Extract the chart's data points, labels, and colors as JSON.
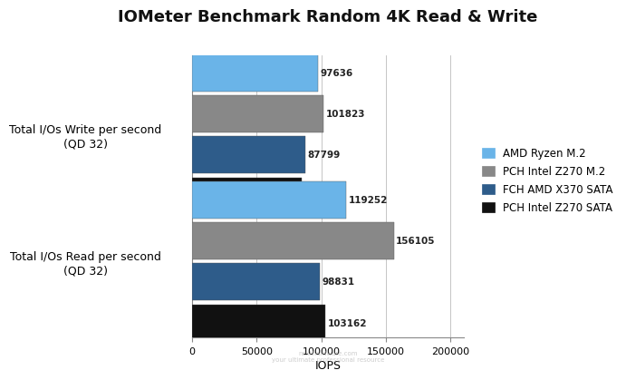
{
  "title": "IOMeter Benchmark Random 4K Read & Write",
  "groups": [
    {
      "label": "Total I/Os Write per second\n(QD 32)",
      "values": [
        97636,
        101823,
        87799,
        84744
      ]
    },
    {
      "label": "Total I/Os Read per second\n(QD 32)",
      "values": [
        119252,
        156105,
        98831,
        103162
      ]
    }
  ],
  "series_labels": [
    "AMD Ryzen M.2",
    "PCH Intel Z270 M.2",
    "FCH AMD X370 SATA",
    "PCH Intel Z270 SATA"
  ],
  "colors": [
    "#6ab4e8",
    "#888888",
    "#2e5c8a",
    "#111111"
  ],
  "xlabel": "IOPS",
  "xlim": [
    0,
    210000
  ],
  "xticks": [
    0,
    50000,
    100000,
    150000,
    200000
  ],
  "xtick_labels": [
    "0",
    "50000",
    "100000",
    "150000",
    "200000"
  ],
  "bar_height": 0.13,
  "bar_spacing": 0.015,
  "group_centers": [
    0.72,
    0.27
  ],
  "background_color": "#ffffff",
  "title_fontsize": 13,
  "axis_fontsize": 8,
  "label_fontsize": 9,
  "legend_fontsize": 8.5,
  "value_fontsize": 7.5,
  "watermark": "nexthardware.com\nyour ultimate professional resource"
}
